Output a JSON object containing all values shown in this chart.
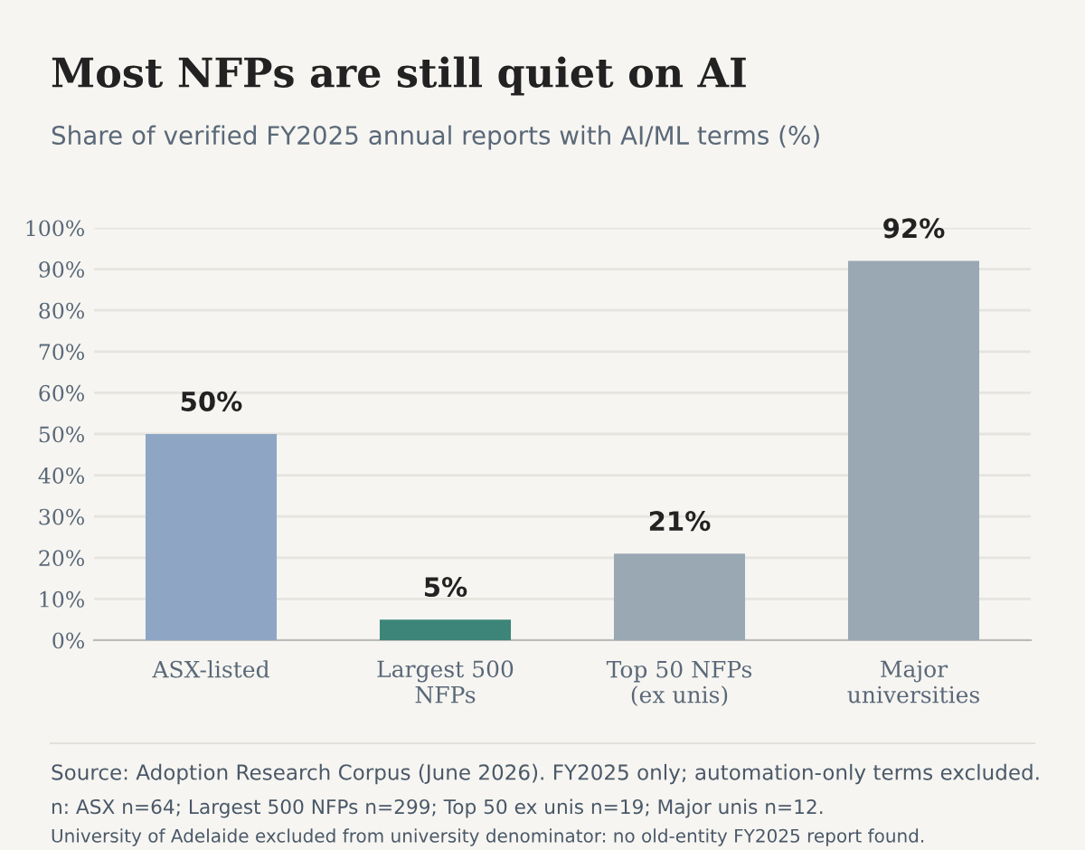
{
  "chart_data": {
    "type": "bar",
    "title": "Most NFPs are still quiet on AI",
    "subtitle": "Share of verified FY2025 annual reports with AI/ML terms (%)",
    "categories": [
      "ASX-listed",
      "Largest 500\nNFPs",
      "Top 50 NFPs\n(ex unis)",
      "Major\nuniversities"
    ],
    "values": [
      50,
      5,
      21,
      92
    ],
    "colors": [
      "#8ea6c4",
      "#3d8579",
      "#9aa8b4",
      "#9aa8b4"
    ],
    "value_labels": [
      "50%",
      "5%",
      "21%",
      "92%"
    ],
    "ylim": [
      0,
      100
    ],
    "yticks": [
      {
        "value": 0,
        "label": "0%"
      },
      {
        "value": 10,
        "label": "10%"
      },
      {
        "value": 20,
        "label": "20%"
      },
      {
        "value": 30,
        "label": "30%"
      },
      {
        "value": 40,
        "label": "40%"
      },
      {
        "value": 50,
        "label": "50%"
      },
      {
        "value": 60,
        "label": "60%"
      },
      {
        "value": 70,
        "label": "70%"
      },
      {
        "value": 80,
        "label": "80%"
      },
      {
        "value": 90,
        "label": "90%"
      },
      {
        "value": 100,
        "label": "100%"
      }
    ],
    "grid": "y",
    "annotations": [
      "Source: Adoption Research Corpus (June 2026). FY2025 only; automation-only terms excluded.",
      "n: ASX n=64; Largest 500 NFPs n=299; Top 50 ex unis n=19; Major unis n=12.",
      "University of Adelaide excluded from university denominator: no old-entity FY2025 report found."
    ]
  }
}
